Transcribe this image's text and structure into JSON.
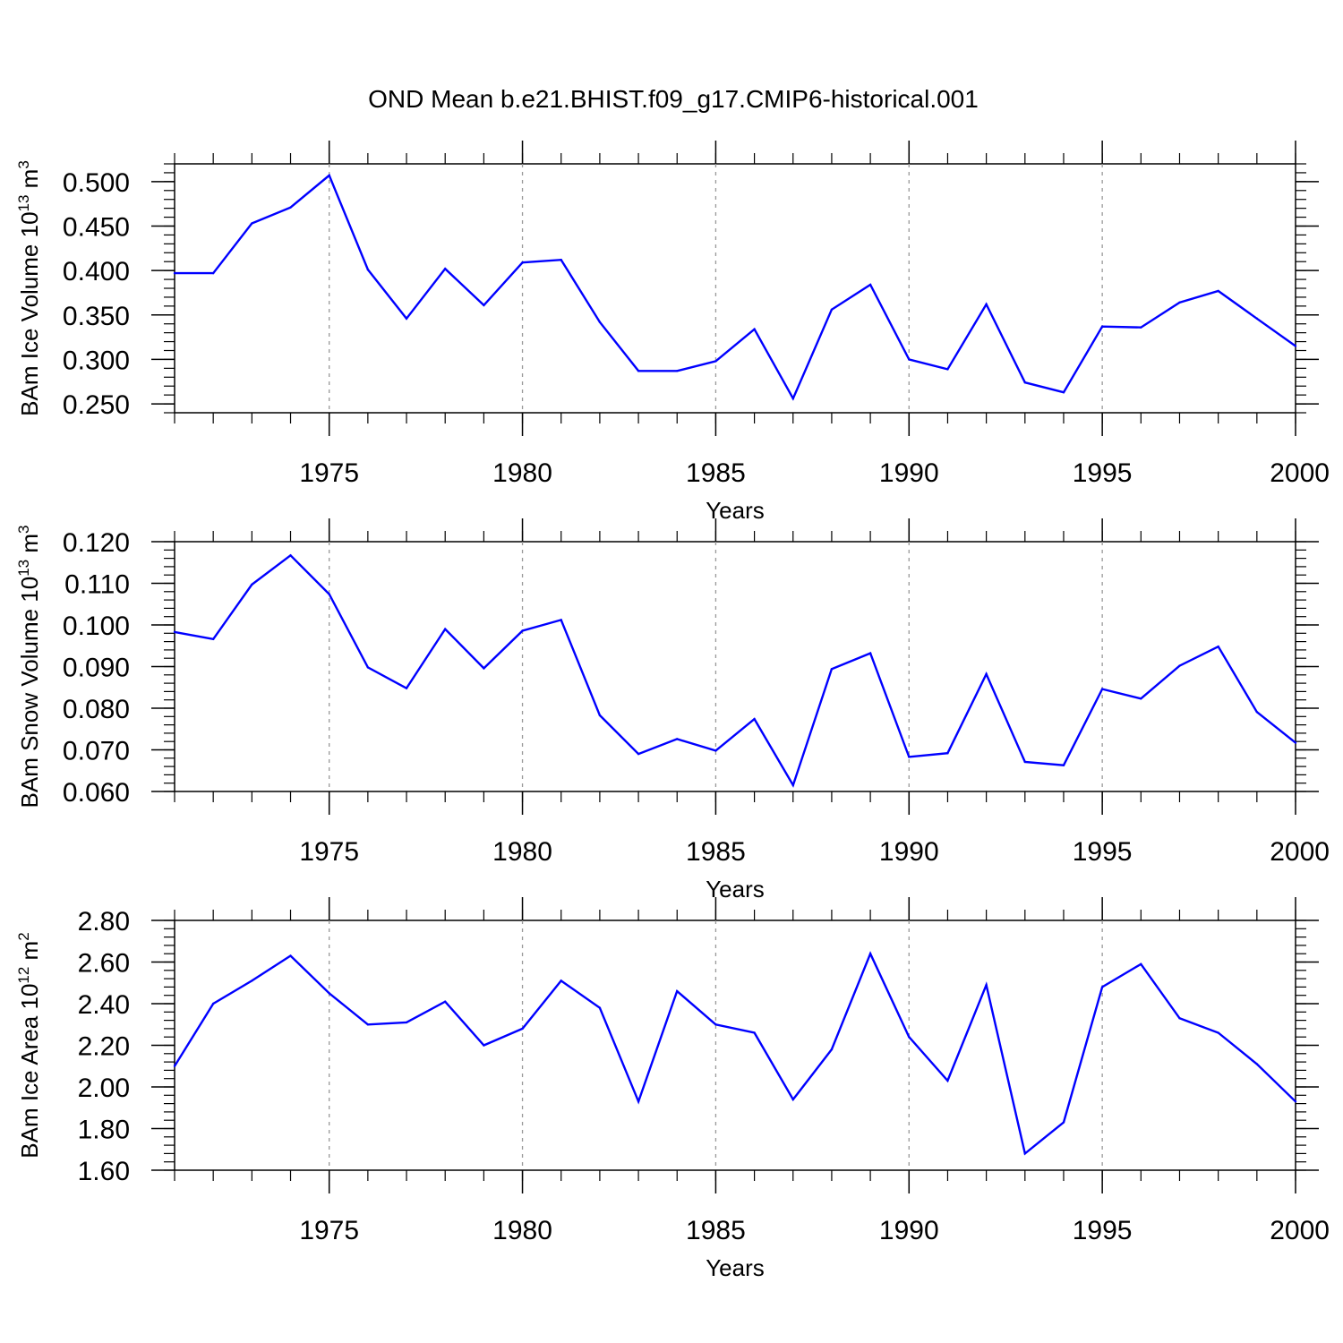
{
  "title": "OND Mean b.e21.BHIST.f09_g17.CMIP6-historical.001",
  "colors": {
    "line": "#0000ff",
    "axis": "#000000",
    "grid": "#999999",
    "background": "#ffffff"
  },
  "chart_data": [
    {
      "type": "line",
      "ylabel_main": "BAm Ice Volume 10",
      "ylabel_exp": "13",
      "ylabel_unit": " m",
      "ylabel_unit_exp": "3",
      "xlabel": "Years",
      "xlim": [
        1971,
        2000
      ],
      "ylim": [
        0.24,
        0.52
      ],
      "x_ticks": [
        1975,
        1980,
        1985,
        1990,
        1995,
        2000
      ],
      "x_tick_labels": [
        "1975",
        "1980",
        "1985",
        "1990",
        "1995",
        "2000"
      ],
      "y_ticks": [
        0.25,
        0.3,
        0.35,
        0.4,
        0.45,
        0.5
      ],
      "y_tick_labels": [
        "0.250",
        "0.300",
        "0.350",
        "0.400",
        "0.450",
        "0.500"
      ],
      "grid": "vertical dashed at major x ticks",
      "x": [
        1971,
        1972,
        1973,
        1974,
        1975,
        1976,
        1977,
        1978,
        1979,
        1980,
        1981,
        1982,
        1983,
        1984,
        1985,
        1986,
        1987,
        1988,
        1989,
        1990,
        1991,
        1992,
        1993,
        1994,
        1995,
        1996,
        1997,
        1998,
        1999,
        2000
      ],
      "series": [
        {
          "values": [
            0.397,
            0.397,
            0.453,
            0.471,
            0.507,
            0.401,
            0.346,
            0.402,
            0.361,
            0.409,
            0.412,
            0.342,
            0.287,
            0.287,
            0.298,
            0.334,
            0.256,
            0.356,
            0.384,
            0.3,
            0.289,
            0.362,
            0.274,
            0.263,
            0.337,
            0.336,
            0.364,
            0.377,
            0.346,
            0.315
          ]
        }
      ]
    },
    {
      "type": "line",
      "ylabel_main": "BAm Snow Volume 10",
      "ylabel_exp": "13",
      "ylabel_unit": " m",
      "ylabel_unit_exp": "3",
      "xlabel": "Years",
      "xlim": [
        1971,
        2000
      ],
      "ylim": [
        0.06,
        0.12
      ],
      "x_ticks": [
        1975,
        1980,
        1985,
        1990,
        1995,
        2000
      ],
      "x_tick_labels": [
        "1975",
        "1980",
        "1985",
        "1990",
        "1995",
        "2000"
      ],
      "y_ticks": [
        0.06,
        0.07,
        0.08,
        0.09,
        0.1,
        0.11,
        0.12
      ],
      "y_tick_labels": [
        "0.060",
        "0.070",
        "0.080",
        "0.090",
        "0.100",
        "0.110",
        "0.120"
      ],
      "grid": "vertical dashed at major x ticks",
      "x": [
        1971,
        1972,
        1973,
        1974,
        1975,
        1976,
        1977,
        1978,
        1979,
        1980,
        1981,
        1982,
        1983,
        1984,
        1985,
        1986,
        1987,
        1988,
        1989,
        1990,
        1991,
        1992,
        1993,
        1994,
        1995,
        1996,
        1997,
        1998,
        1999,
        2000
      ],
      "series": [
        {
          "values": [
            0.0983,
            0.0966,
            0.1097,
            0.1167,
            0.1074,
            0.0898,
            0.0848,
            0.099,
            0.0896,
            0.0986,
            0.1012,
            0.0783,
            0.069,
            0.0726,
            0.0698,
            0.0774,
            0.0615,
            0.0894,
            0.0932,
            0.0683,
            0.0692,
            0.0882,
            0.0671,
            0.0663,
            0.0846,
            0.0823,
            0.0902,
            0.0948,
            0.0791,
            0.0717
          ]
        }
      ]
    },
    {
      "type": "line",
      "ylabel_main": "BAm Ice Area 10",
      "ylabel_exp": "12",
      "ylabel_unit": " m",
      "ylabel_unit_exp": "2",
      "xlabel": "Years",
      "xlim": [
        1971,
        2000
      ],
      "ylim": [
        1.6,
        2.8
      ],
      "x_ticks": [
        1975,
        1980,
        1985,
        1990,
        1995,
        2000
      ],
      "x_tick_labels": [
        "1975",
        "1980",
        "1985",
        "1990",
        "1995",
        "2000"
      ],
      "y_ticks": [
        1.6,
        1.8,
        2.0,
        2.2,
        2.4,
        2.6,
        2.8
      ],
      "y_tick_labels": [
        "1.60",
        "1.80",
        "2.00",
        "2.20",
        "2.40",
        "2.60",
        "2.80"
      ],
      "grid": "vertical dashed at major x ticks",
      "x": [
        1971,
        1972,
        1973,
        1974,
        1975,
        1976,
        1977,
        1978,
        1979,
        1980,
        1981,
        1982,
        1983,
        1984,
        1985,
        1986,
        1987,
        1988,
        1989,
        1990,
        1991,
        1992,
        1993,
        1994,
        1995,
        1996,
        1997,
        1998,
        1999,
        2000
      ],
      "series": [
        {
          "values": [
            2.1,
            2.4,
            2.51,
            2.63,
            2.45,
            2.3,
            2.31,
            2.41,
            2.2,
            2.28,
            2.51,
            2.38,
            1.93,
            2.46,
            2.3,
            2.26,
            1.94,
            2.18,
            2.64,
            2.24,
            2.03,
            2.49,
            1.68,
            1.83,
            2.48,
            2.59,
            2.33,
            2.26,
            2.11,
            1.93
          ]
        }
      ]
    }
  ]
}
